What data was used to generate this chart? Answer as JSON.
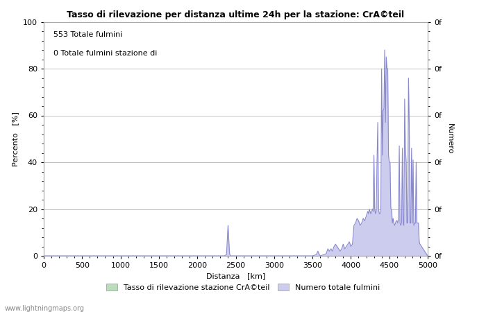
{
  "title": "Tasso di rilevazione per distanza ultime 24h per la stazione: CrA©teil",
  "xlabel": "Distanza   [km]",
  "ylabel_left": "Percento   [%]",
  "ylabel_right": "Numero",
  "annotation_line1": "553 Totale fulmini",
  "annotation_line2": "0 Totale fulmini stazione di",
  "xlim": [
    0,
    5000
  ],
  "ylim": [
    0,
    100
  ],
  "xticks": [
    0,
    500,
    1000,
    1500,
    2000,
    2500,
    3000,
    3500,
    4000,
    4500,
    5000
  ],
  "yticks_left": [
    0,
    20,
    40,
    60,
    80,
    100
  ],
  "legend_label_green": "Tasso di rilevazione stazione CrA©teil",
  "legend_label_blue": "Numero totale fulmini",
  "watermark": "www.lightningmaps.org",
  "bg_color": "#ffffff",
  "grid_color": "#c0c0c0",
  "line_color": "#8888cc",
  "fill_color_blue": "#ccccee",
  "fill_color_green": "#bbddbb",
  "detection_data": [
    [
      0,
      0
    ],
    [
      100,
      0
    ],
    [
      200,
      0
    ],
    [
      300,
      0
    ],
    [
      400,
      0
    ],
    [
      500,
      0
    ],
    [
      600,
      0
    ],
    [
      700,
      0
    ],
    [
      800,
      0
    ],
    [
      900,
      0
    ],
    [
      1000,
      0
    ],
    [
      1100,
      0
    ],
    [
      1200,
      0
    ],
    [
      1300,
      0
    ],
    [
      1400,
      0
    ],
    [
      1500,
      0
    ],
    [
      1600,
      0
    ],
    [
      1700,
      0
    ],
    [
      1800,
      0
    ],
    [
      1900,
      0
    ],
    [
      2000,
      0
    ],
    [
      2100,
      0
    ],
    [
      2200,
      0
    ],
    [
      2300,
      0
    ],
    [
      2350,
      0
    ],
    [
      2380,
      0.5
    ],
    [
      2400,
      13
    ],
    [
      2420,
      1
    ],
    [
      2430,
      0
    ],
    [
      2500,
      0
    ],
    [
      2600,
      0
    ],
    [
      2700,
      0
    ],
    [
      2800,
      0
    ],
    [
      2900,
      0
    ],
    [
      3000,
      0
    ],
    [
      3100,
      0
    ],
    [
      3200,
      0
    ],
    [
      3300,
      0
    ],
    [
      3400,
      0
    ],
    [
      3500,
      0
    ],
    [
      3550,
      0.5
    ],
    [
      3570,
      2
    ],
    [
      3590,
      0.5
    ],
    [
      3600,
      0
    ],
    [
      3650,
      0.5
    ],
    [
      3680,
      1
    ],
    [
      3700,
      3
    ],
    [
      3720,
      2
    ],
    [
      3740,
      3
    ],
    [
      3760,
      2
    ],
    [
      3780,
      4
    ],
    [
      3800,
      5
    ],
    [
      3820,
      4
    ],
    [
      3840,
      3
    ],
    [
      3860,
      2
    ],
    [
      3880,
      3
    ],
    [
      3900,
      5
    ],
    [
      3920,
      3
    ],
    [
      3940,
      4
    ],
    [
      3960,
      5
    ],
    [
      3980,
      6
    ],
    [
      4000,
      4
    ],
    [
      4020,
      5
    ],
    [
      4040,
      13
    ],
    [
      4060,
      14
    ],
    [
      4080,
      16
    ],
    [
      4100,
      15
    ],
    [
      4120,
      13
    ],
    [
      4140,
      14
    ],
    [
      4160,
      16
    ],
    [
      4180,
      15
    ],
    [
      4200,
      17
    ],
    [
      4220,
      19
    ],
    [
      4230,
      18
    ],
    [
      4240,
      20
    ],
    [
      4250,
      19
    ],
    [
      4260,
      18
    ],
    [
      4270,
      19
    ],
    [
      4280,
      20
    ],
    [
      4290,
      19
    ],
    [
      4300,
      43
    ],
    [
      4310,
      20
    ],
    [
      4320,
      18
    ],
    [
      4330,
      19
    ],
    [
      4340,
      40
    ],
    [
      4350,
      57
    ],
    [
      4360,
      20
    ],
    [
      4370,
      18
    ],
    [
      4380,
      18
    ],
    [
      4390,
      19
    ],
    [
      4400,
      80
    ],
    [
      4410,
      43
    ],
    [
      4420,
      62
    ],
    [
      4430,
      63
    ],
    [
      4440,
      88
    ],
    [
      4450,
      57
    ],
    [
      4460,
      85
    ],
    [
      4470,
      80
    ],
    [
      4480,
      80
    ],
    [
      4490,
      43
    ],
    [
      4500,
      40
    ],
    [
      4510,
      40
    ],
    [
      4520,
      20
    ],
    [
      4530,
      20
    ],
    [
      4540,
      14
    ],
    [
      4550,
      16
    ],
    [
      4560,
      14
    ],
    [
      4570,
      13
    ],
    [
      4580,
      14
    ],
    [
      4590,
      15
    ],
    [
      4600,
      15
    ],
    [
      4610,
      14
    ],
    [
      4620,
      16
    ],
    [
      4630,
      47
    ],
    [
      4640,
      14
    ],
    [
      4650,
      13
    ],
    [
      4660,
      14
    ],
    [
      4670,
      46
    ],
    [
      4680,
      14
    ],
    [
      4690,
      13
    ],
    [
      4700,
      67
    ],
    [
      4710,
      46
    ],
    [
      4720,
      40
    ],
    [
      4730,
      14
    ],
    [
      4740,
      14
    ],
    [
      4750,
      76
    ],
    [
      4760,
      56
    ],
    [
      4770,
      14
    ],
    [
      4780,
      14
    ],
    [
      4790,
      46
    ],
    [
      4800,
      14
    ],
    [
      4810,
      41
    ],
    [
      4820,
      13
    ],
    [
      4830,
      14
    ],
    [
      4840,
      14
    ],
    [
      4850,
      40
    ],
    [
      4860,
      14
    ],
    [
      4870,
      14
    ],
    [
      4880,
      14
    ],
    [
      4890,
      6
    ],
    [
      4900,
      5
    ],
    [
      4920,
      4
    ],
    [
      4940,
      3
    ],
    [
      4960,
      2
    ],
    [
      4980,
      1
    ],
    [
      5000,
      0
    ]
  ]
}
